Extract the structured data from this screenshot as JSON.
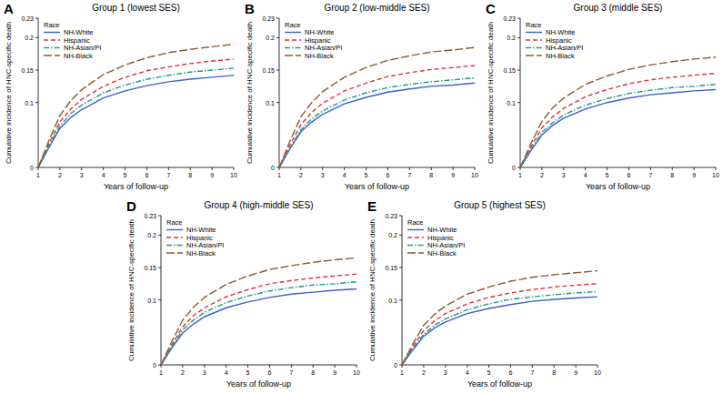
{
  "chart_data": [
    {
      "type": "line",
      "label": "A",
      "title": "Group 1 (lowest SES)",
      "x_label": "Years of follow-up",
      "y_label": "Cumulative incidence of HNC-specific death",
      "legend_title": "Race",
      "legend": "upper left",
      "x": [
        1,
        1.5,
        2,
        2.5,
        3,
        4,
        5,
        6,
        7,
        8,
        9,
        10
      ],
      "xlim": [
        1,
        10
      ],
      "xticks": [
        1,
        2,
        3,
        4,
        5,
        6,
        7,
        8,
        9,
        10
      ],
      "ylim": [
        0,
        0.23
      ],
      "yticks": [
        0,
        0.1,
        0.15,
        0.2,
        0.23
      ],
      "series": [
        {
          "name": "NH-White",
          "color": "#3b5fcf",
          "line_style": "solid",
          "values": [
            0,
            0.031,
            0.06,
            0.077,
            0.089,
            0.107,
            0.118,
            0.126,
            0.132,
            0.136,
            0.139,
            0.142
          ]
        },
        {
          "name": "Hispanic",
          "color": "#e0313b",
          "line_style": "dashed",
          "values": [
            0,
            0.037,
            0.07,
            0.09,
            0.105,
            0.125,
            0.139,
            0.149,
            0.155,
            0.16,
            0.164,
            0.167
          ]
        },
        {
          "name": "NH-Asian/PI",
          "color": "#1a9a8a",
          "line_style": "dashdot",
          "values": [
            0,
            0.034,
            0.064,
            0.083,
            0.096,
            0.115,
            0.127,
            0.136,
            0.142,
            0.147,
            0.15,
            0.153
          ]
        },
        {
          "name": "NH-Black",
          "color": "#8b5a2b",
          "line_style": "longdash",
          "values": [
            0,
            0.042,
            0.08,
            0.103,
            0.12,
            0.143,
            0.158,
            0.169,
            0.177,
            0.182,
            0.186,
            0.19
          ]
        }
      ]
    },
    {
      "type": "line",
      "label": "B",
      "title": "Group 2 (low-middle SES)",
      "x_label": "Years of follow-up",
      "y_label": "Cumulative incidence of HNC-specific death",
      "legend_title": "Race",
      "legend": "upper left",
      "x": [
        1,
        1.5,
        2,
        2.5,
        3,
        4,
        5,
        6,
        7,
        8,
        9,
        10
      ],
      "xlim": [
        1,
        10
      ],
      "xticks": [
        1,
        2,
        3,
        4,
        5,
        6,
        7,
        8,
        9,
        10
      ],
      "ylim": [
        0,
        0.23
      ],
      "yticks": [
        0,
        0.1,
        0.15,
        0.2,
        0.23
      ],
      "series": [
        {
          "name": "NH-White",
          "color": "#3b5fcf",
          "line_style": "solid",
          "values": [
            0,
            0.029,
            0.055,
            0.07,
            0.082,
            0.098,
            0.108,
            0.116,
            0.121,
            0.125,
            0.127,
            0.13
          ]
        },
        {
          "name": "Hispanic",
          "color": "#e0313b",
          "line_style": "dashed",
          "values": [
            0,
            0.035,
            0.066,
            0.085,
            0.099,
            0.118,
            0.13,
            0.14,
            0.146,
            0.151,
            0.154,
            0.157
          ]
        },
        {
          "name": "NH-Asian/PI",
          "color": "#1a9a8a",
          "line_style": "dashdot",
          "values": [
            0,
            0.03,
            0.058,
            0.075,
            0.087,
            0.104,
            0.115,
            0.123,
            0.128,
            0.132,
            0.135,
            0.138
          ]
        },
        {
          "name": "NH-Black",
          "color": "#8b5a2b",
          "line_style": "longdash",
          "values": [
            0,
            0.041,
            0.078,
            0.1,
            0.117,
            0.139,
            0.154,
            0.165,
            0.172,
            0.178,
            0.181,
            0.185
          ]
        }
      ]
    },
    {
      "type": "line",
      "label": "C",
      "title": "Group 3 (middle SES)",
      "x_label": "Years of follow-up",
      "y_label": "Cumulative incidence of HNC-specific death",
      "legend_title": "Race",
      "legend": "upper left",
      "x": [
        1,
        1.5,
        2,
        2.5,
        3,
        4,
        5,
        6,
        7,
        8,
        9,
        10
      ],
      "xlim": [
        1,
        10
      ],
      "xticks": [
        1,
        2,
        3,
        4,
        5,
        6,
        7,
        8,
        9,
        10
      ],
      "ylim": [
        0,
        0.23
      ],
      "yticks": [
        0,
        0.1,
        0.15,
        0.2,
        0.23
      ],
      "series": [
        {
          "name": "NH-White",
          "color": "#3b5fcf",
          "line_style": "solid",
          "values": [
            0,
            0.026,
            0.05,
            0.065,
            0.076,
            0.09,
            0.1,
            0.107,
            0.112,
            0.115,
            0.118,
            0.12
          ]
        },
        {
          "name": "Hispanic",
          "color": "#e0313b",
          "line_style": "dashed",
          "values": [
            0,
            0.032,
            0.061,
            0.078,
            0.091,
            0.109,
            0.12,
            0.129,
            0.135,
            0.139,
            0.142,
            0.145
          ]
        },
        {
          "name": "NH-Asian/PI",
          "color": "#1a9a8a",
          "line_style": "dashdot",
          "values": [
            0,
            0.028,
            0.054,
            0.069,
            0.081,
            0.096,
            0.106,
            0.114,
            0.119,
            0.123,
            0.125,
            0.128
          ]
        },
        {
          "name": "NH-Black",
          "color": "#8b5a2b",
          "line_style": "longdash",
          "values": [
            0,
            0.037,
            0.071,
            0.092,
            0.107,
            0.128,
            0.141,
            0.151,
            0.158,
            0.163,
            0.167,
            0.17
          ]
        }
      ]
    },
    {
      "type": "line",
      "label": "D",
      "title": "Group 4 (high-middle SES)",
      "x_label": "Years of follow-up",
      "y_label": "Cumulative incidence of HNC-specific death",
      "legend_title": "Race",
      "legend": "upper left",
      "x": [
        1,
        1.5,
        2,
        2.5,
        3,
        4,
        5,
        6,
        7,
        8,
        9,
        10
      ],
      "xlim": [
        1,
        10
      ],
      "xticks": [
        1,
        2,
        3,
        4,
        5,
        6,
        7,
        8,
        9,
        10
      ],
      "ylim": [
        0,
        0.23
      ],
      "yticks": [
        0,
        0.1,
        0.15,
        0.2,
        0.23
      ],
      "series": [
        {
          "name": "NH-White",
          "color": "#3b5fcf",
          "line_style": "solid",
          "values": [
            0,
            0.026,
            0.049,
            0.063,
            0.074,
            0.088,
            0.097,
            0.104,
            0.109,
            0.112,
            0.115,
            0.117
          ]
        },
        {
          "name": "Hispanic",
          "color": "#e0313b",
          "line_style": "dashed",
          "values": [
            0,
            0.031,
            0.059,
            0.076,
            0.088,
            0.105,
            0.116,
            0.125,
            0.13,
            0.134,
            0.137,
            0.14
          ]
        },
        {
          "name": "NH-Asian/PI",
          "color": "#1a9a8a",
          "line_style": "dashdot",
          "values": [
            0,
            0.028,
            0.054,
            0.069,
            0.081,
            0.096,
            0.106,
            0.114,
            0.119,
            0.123,
            0.125,
            0.128
          ]
        },
        {
          "name": "NH-Black",
          "color": "#8b5a2b",
          "line_style": "longdash",
          "values": [
            0,
            0.036,
            0.069,
            0.089,
            0.104,
            0.124,
            0.137,
            0.147,
            0.153,
            0.158,
            0.162,
            0.165
          ]
        }
      ]
    },
    {
      "type": "line",
      "label": "E",
      "title": "Group 5 (highest SES)",
      "x_label": "Years of follow-up",
      "y_label": "Cumulative incidence of HNC-specific death",
      "legend_title": "Race",
      "legend": "upper left",
      "x": [
        1,
        1.5,
        2,
        2.5,
        3,
        4,
        5,
        6,
        7,
        8,
        9,
        10
      ],
      "xlim": [
        1,
        10
      ],
      "xticks": [
        1,
        2,
        3,
        4,
        5,
        6,
        7,
        8,
        9,
        10
      ],
      "ylim": [
        0,
        0.23
      ],
      "yticks": [
        0,
        0.1,
        0.15,
        0.2,
        0.23
      ],
      "series": [
        {
          "name": "NH-White",
          "color": "#3b5fcf",
          "line_style": "solid",
          "values": [
            0,
            0.023,
            0.044,
            0.057,
            0.066,
            0.079,
            0.087,
            0.093,
            0.098,
            0.101,
            0.103,
            0.105
          ]
        },
        {
          "name": "Hispanic",
          "color": "#e0313b",
          "line_style": "dashed",
          "values": [
            0,
            0.028,
            0.053,
            0.068,
            0.079,
            0.094,
            0.104,
            0.111,
            0.116,
            0.12,
            0.123,
            0.125
          ]
        },
        {
          "name": "NH-Asian/PI",
          "color": "#1a9a8a",
          "line_style": "dashdot",
          "values": [
            0,
            0.025,
            0.047,
            0.061,
            0.071,
            0.085,
            0.094,
            0.101,
            0.105,
            0.108,
            0.111,
            0.113
          ]
        },
        {
          "name": "NH-Black",
          "color": "#8b5a2b",
          "line_style": "longdash",
          "values": [
            0,
            0.032,
            0.061,
            0.078,
            0.091,
            0.109,
            0.12,
            0.129,
            0.135,
            0.139,
            0.142,
            0.145
          ]
        }
      ]
    }
  ]
}
